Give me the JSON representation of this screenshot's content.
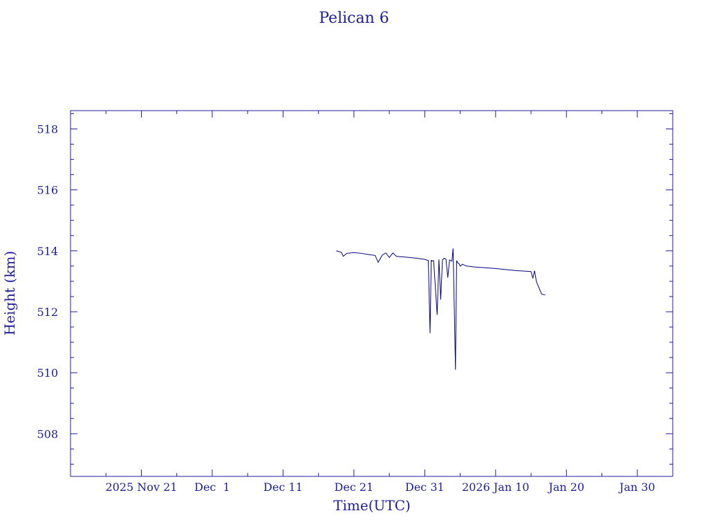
{
  "chart_data": {
    "type": "line",
    "title": "Pelican 6",
    "xlabel": "Time(UTC)",
    "ylabel": "Height (km)",
    "x_ticks": [
      "2025 Nov 21",
      "Dec  1",
      "Dec 11",
      "Dec 21",
      "Dec 31",
      "2026 Jan 10",
      "Jan 20",
      "Jan 30"
    ],
    "y_ticks": [
      "508",
      "510",
      "512",
      "514",
      "516",
      "518"
    ],
    "xlim": [
      "2025-11-11",
      "2026-02-04"
    ],
    "ylim": [
      506.6,
      518.6
    ],
    "color": "#000080",
    "series": [
      {
        "x": [
          "2025-12-18 12:00",
          "2025-12-19 06:00",
          "2025-12-19 12:00",
          "2025-12-20 00:00",
          "2025-12-21 00:00",
          "2025-12-22 00:00",
          "2025-12-23 00:00",
          "2025-12-24 00:00",
          "2025-12-24 10:00",
          "2025-12-25 00:00",
          "2025-12-25 12:00",
          "2025-12-26 00:00",
          "2025-12-26 12:00",
          "2025-12-27 00:00",
          "2025-12-28 00:00",
          "2025-12-29 00:00",
          "2025-12-30 00:00",
          "2025-12-31 00:00",
          "2025-12-31 12:00",
          "2025-12-31 18:00",
          "2025-12-31 22:00",
          "2026-01-01 00:00",
          "2026-01-01 06:00",
          "2026-01-01 18:00",
          "2026-01-02 00:00",
          "2026-01-02 06:00",
          "2026-01-02 12:00",
          "2026-01-02 18:00",
          "2026-01-03 00:00",
          "2026-01-03 06:00",
          "2026-01-03 12:00",
          "2026-01-03 20:00",
          "2026-01-04 00:00",
          "2026-01-04 08:00",
          "2026-01-04 12:00",
          "2026-01-04 16:00",
          "2026-01-04 20:00",
          "2026-01-05 00:00",
          "2026-01-05 08:00",
          "2026-01-05 16:00",
          "2026-01-06 00:00",
          "2026-01-07 00:00",
          "2026-01-10 00:00",
          "2026-01-13 00:00",
          "2026-01-15 00:00",
          "2026-01-15 06:00",
          "2026-01-15 12:00",
          "2026-01-15 18:00",
          "2026-01-16 00:00",
          "2026-01-16 12:00",
          "2026-01-17 00:00"
        ],
        "y": [
          514.0,
          513.95,
          513.82,
          513.92,
          513.94,
          513.92,
          513.88,
          513.85,
          513.62,
          513.86,
          513.93,
          513.78,
          513.93,
          513.82,
          513.8,
          513.78,
          513.75,
          513.72,
          513.68,
          511.3,
          513.7,
          513.66,
          513.68,
          511.9,
          513.72,
          512.4,
          513.7,
          513.76,
          513.72,
          513.12,
          513.7,
          513.66,
          514.08,
          510.1,
          513.68,
          513.6,
          513.58,
          513.5,
          513.56,
          513.52,
          513.5,
          513.47,
          513.42,
          513.35,
          513.32,
          513.1,
          513.35,
          513.0,
          512.85,
          512.58,
          512.55
        ]
      }
    ]
  }
}
